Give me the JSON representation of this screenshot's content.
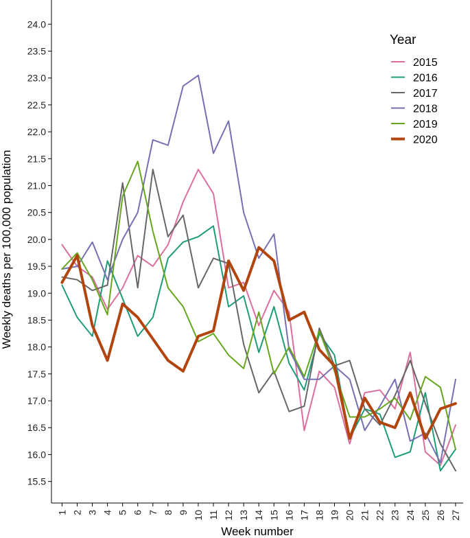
{
  "chart_data": {
    "type": "line",
    "xlabel": "Week number",
    "ylabel": "Weekly deaths per 100,000 population",
    "x": [
      1,
      2,
      3,
      4,
      5,
      6,
      7,
      8,
      9,
      10,
      11,
      12,
      13,
      14,
      15,
      16,
      17,
      18,
      19,
      20,
      21,
      22,
      23,
      24,
      25,
      26,
      27
    ],
    "x_tick_labels": [
      "1",
      "2",
      "3",
      "4",
      "5",
      "6",
      "7",
      "8",
      "9",
      "10",
      "11",
      "12",
      "13",
      "14",
      "15",
      "16",
      "17",
      "18",
      "19",
      "20",
      "21",
      "22",
      "23",
      "24",
      "25",
      "26",
      "27"
    ],
    "xlim": [
      0.3,
      27.5
    ],
    "ylim": [
      15.1,
      24.45
    ],
    "y_ticks": [
      15.5,
      16.0,
      16.5,
      17.0,
      17.5,
      18.0,
      18.5,
      19.0,
      19.5,
      20.0,
      20.5,
      21.0,
      21.5,
      22.0,
      22.5,
      23.0,
      23.5,
      24.0
    ],
    "y_tick_labels": [
      "15.5",
      "16.0",
      "16.5",
      "17.0",
      "17.5",
      "18.0",
      "18.5",
      "19.0",
      "19.5",
      "20.0",
      "20.5",
      "21.0",
      "21.5",
      "22.0",
      "22.5",
      "23.0",
      "23.5",
      "24.0"
    ],
    "grid": false,
    "legend": {
      "title": "Year",
      "position": "right"
    },
    "series": [
      {
        "name": "2015",
        "color": "#DB6E9E",
        "width": 2,
        "values": [
          19.9,
          19.5,
          19.3,
          18.7,
          19.1,
          19.7,
          19.5,
          19.9,
          20.7,
          21.3,
          20.85,
          19.1,
          19.2,
          18.4,
          19.05,
          18.65,
          16.45,
          17.55,
          17.25,
          16.2,
          17.15,
          17.2,
          16.85,
          17.9,
          16.05,
          15.8,
          16.55
        ]
      },
      {
        "name": "2016",
        "color": "#1C9C78",
        "width": 2,
        "values": [
          19.15,
          18.55,
          18.2,
          19.6,
          18.9,
          18.2,
          18.55,
          19.65,
          19.95,
          20.05,
          20.25,
          18.75,
          18.95,
          17.9,
          18.75,
          17.7,
          17.2,
          18.25,
          17.85,
          16.3,
          16.85,
          16.75,
          15.95,
          16.05,
          17.15,
          15.7,
          16.1
        ]
      },
      {
        "name": "2017",
        "color": "#666666",
        "width": 2,
        "values": [
          19.3,
          19.25,
          19.05,
          19.15,
          21.05,
          19.1,
          21.3,
          20.05,
          20.45,
          19.1,
          19.65,
          19.55,
          18.05,
          17.15,
          17.55,
          16.8,
          16.9,
          18.35,
          17.65,
          17.75,
          16.85,
          16.55,
          17.1,
          17.75,
          16.95,
          16.2,
          15.7
        ]
      },
      {
        "name": "2018",
        "color": "#7570B3",
        "width": 2,
        "values": [
          19.45,
          19.5,
          19.95,
          19.25,
          20.0,
          20.5,
          21.85,
          21.75,
          22.85,
          23.05,
          21.6,
          22.2,
          20.5,
          19.65,
          20.1,
          17.95,
          17.4,
          17.4,
          17.65,
          17.4,
          16.45,
          16.9,
          17.4,
          16.25,
          16.4,
          15.85,
          17.4
        ]
      },
      {
        "name": "2019",
        "color": "#66A61E",
        "width": 2,
        "values": [
          19.45,
          19.75,
          19.25,
          18.6,
          20.8,
          21.45,
          20.15,
          19.1,
          18.75,
          18.1,
          18.25,
          17.85,
          17.6,
          18.65,
          17.5,
          18.0,
          17.45,
          18.3,
          17.55,
          16.7,
          16.7,
          16.85,
          17.05,
          16.65,
          17.45,
          17.25,
          16.1
        ]
      },
      {
        "name": "2020",
        "color": "#B2450E",
        "width": 4,
        "values": [
          19.2,
          19.7,
          18.4,
          17.75,
          18.8,
          18.55,
          18.15,
          17.75,
          17.55,
          18.2,
          18.3,
          19.6,
          19.05,
          19.85,
          19.6,
          18.5,
          18.65,
          17.95,
          17.65,
          16.3,
          17.05,
          16.6,
          16.5,
          17.15,
          16.3,
          16.85,
          16.95
        ]
      }
    ]
  }
}
